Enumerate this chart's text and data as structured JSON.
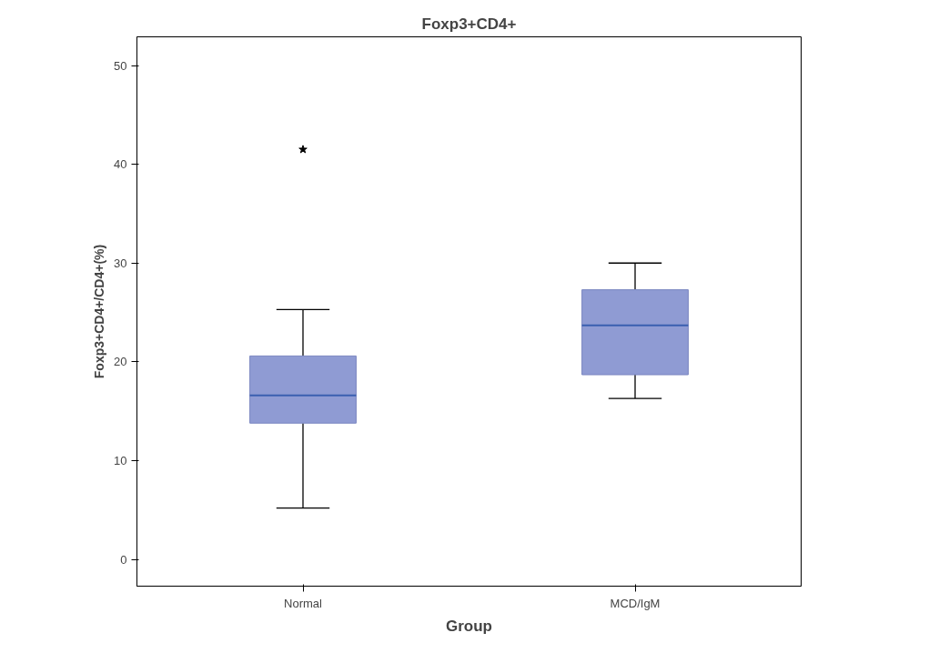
{
  "chart_data": {
    "type": "box",
    "title": "Foxp3+CD4+",
    "xlabel": "Group",
    "ylabel": "Foxp3+CD4+/CD4+(%)",
    "categories": [
      "Normal",
      "MCD/IgM"
    ],
    "boxes": [
      {
        "low": 5.2,
        "q1": 13.8,
        "median": 16.6,
        "q3": 20.6,
        "high": 25.3,
        "outliers": [
          41.5
        ]
      },
      {
        "low": 16.3,
        "q1": 18.7,
        "median": 23.7,
        "q3": 27.3,
        "high": 30
      }
    ],
    "color": "#8f9bd3",
    "ylim": [
      -2.7,
      52.9
    ],
    "yticks": [
      0,
      10,
      20,
      30,
      40,
      50
    ],
    "grid": false,
    "marker": "star"
  }
}
